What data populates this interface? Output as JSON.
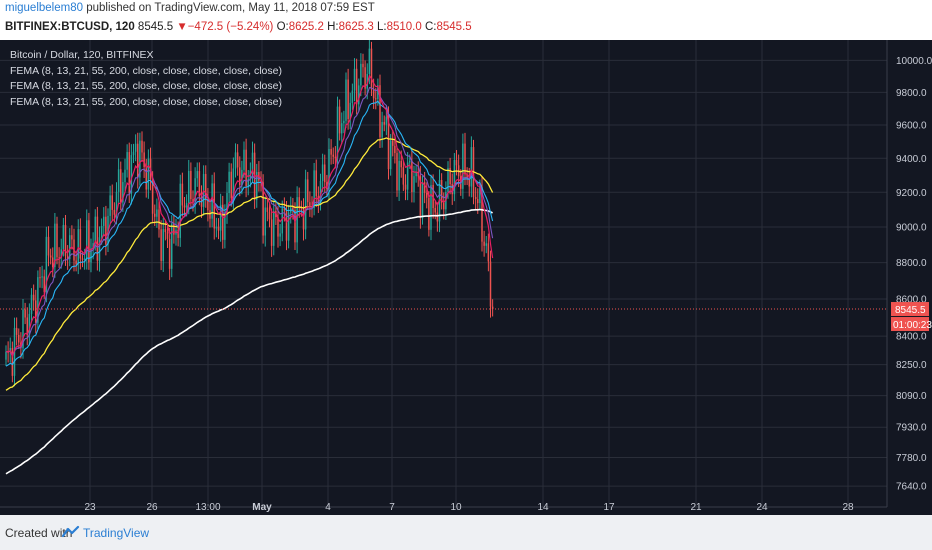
{
  "header": {
    "author": "miguelbelem80",
    "published_text": "published on TradingView.com, May 11, 2018 07:59 EST",
    "symbol": "BITFINEX:BTCUSD, 120",
    "last": "8545.5",
    "change": "−472.5 (−5.24%)",
    "open_label": "O:",
    "open": "8625.2",
    "high_label": "H:",
    "high": "8625.3",
    "low_label": "L:",
    "low": "8510.0",
    "close_label": "C:",
    "close": "8545.5",
    "arrow_icon": "down-triangle-icon"
  },
  "legend": {
    "title": "Bitcoin / Dollar, 120, BITFINEX",
    "studies": [
      "FEMA (8, 13, 21, 55, 200, close, close, close, close, close)",
      "FEMA (8, 13, 21, 55, 200, close, close, close, close, close)",
      "FEMA (8, 13, 21, 55, 200, close, close, close, close, close)"
    ]
  },
  "footer": {
    "created_with": "Created with",
    "brand": "TradingView",
    "logo_icon": "tradingview-logo-icon"
  },
  "colors": {
    "background": "#131722",
    "grid": "#2a2e39",
    "up": "#26a69a",
    "down": "#ef5350",
    "ema8": "#e91e63",
    "ema13": "#7e57c2",
    "ema21": "#29b6f6",
    "ema55": "#ffeb3b",
    "ema200": "#ffffff",
    "price_line": "#ef5350"
  },
  "chart_data": {
    "type": "candlestick",
    "symbol": "BITFINEX:BTCUSD",
    "interval": "120",
    "y_scale": "log",
    "ylim": [
      7560,
      10080
    ],
    "y_ticks": [
      7640.0,
      7780.0,
      7930.0,
      8090.0,
      8250.0,
      8400.0,
      8600.0,
      8800.0,
      9000.0,
      9200.0,
      9400.0,
      9600.0,
      9800.0,
      10000.0
    ],
    "x_ticks": [
      "23",
      "26",
      "13:00",
      "May",
      "4",
      "7",
      "10",
      "14",
      "17",
      "21",
      "24",
      "28"
    ],
    "current_price": "8545.5",
    "countdown": "01:00:23",
    "grid": true,
    "series_names": [
      "EMA 8",
      "EMA 13",
      "EMA 21",
      "EMA 55",
      "EMA 200"
    ],
    "anchors": [
      [
        0,
        8260
      ],
      [
        7,
        8420
      ],
      [
        14,
        8600
      ],
      [
        20,
        8850
      ],
      [
        28,
        8900
      ],
      [
        35,
        8850
      ],
      [
        45,
        8960
      ],
      [
        55,
        9280
      ],
      [
        62,
        9450
      ],
      [
        67,
        9300
      ],
      [
        72,
        8950
      ],
      [
        78,
        8900
      ],
      [
        83,
        9150
      ],
      [
        90,
        9250
      ],
      [
        96,
        9120
      ],
      [
        101,
        8980
      ],
      [
        107,
        9350
      ],
      [
        113,
        9320
      ],
      [
        118,
        9300
      ],
      [
        122,
        9050
      ],
      [
        127,
        9000
      ],
      [
        132,
        9050
      ],
      [
        137,
        9070
      ],
      [
        142,
        9150
      ],
      [
        147,
        9220
      ],
      [
        152,
        9350
      ],
      [
        158,
        9650
      ],
      [
        163,
        9800
      ],
      [
        168,
        9920
      ],
      [
        171,
        9940
      ],
      [
        175,
        9700
      ],
      [
        180,
        9500
      ],
      [
        186,
        9280
      ],
      [
        191,
        9320
      ],
      [
        196,
        9180
      ],
      [
        201,
        9100
      ],
      [
        205,
        9150
      ],
      [
        210,
        9300
      ],
      [
        215,
        9340
      ],
      [
        219,
        9300
      ],
      [
        223,
        9100
      ],
      [
        226,
        8850
      ],
      [
        229,
        8545.5
      ]
    ]
  }
}
